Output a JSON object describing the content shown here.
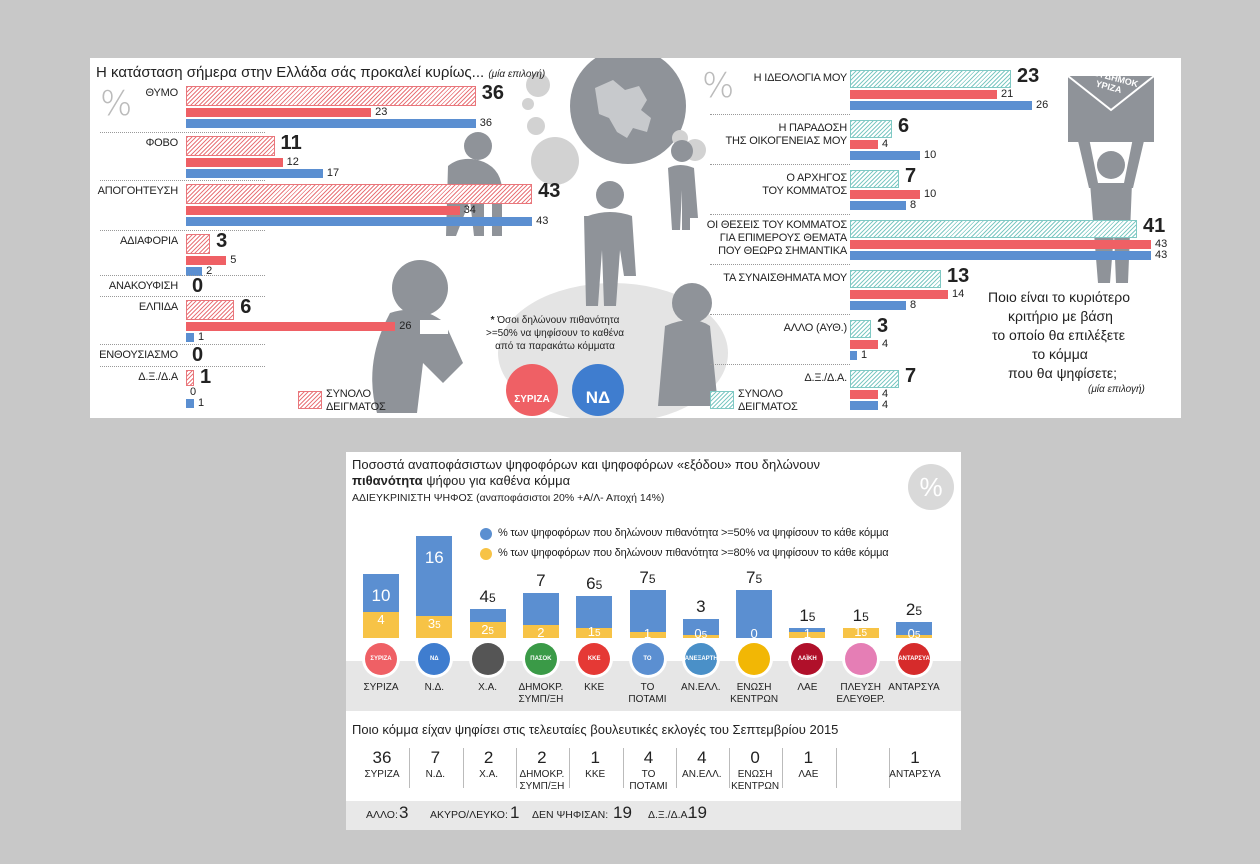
{
  "colors": {
    "red": "#ef6065",
    "blue": "#5b8fd1",
    "teal": "#7fc9c4",
    "yellow": "#f7c346",
    "gray": "#8f9399"
  },
  "left_chart": {
    "title": "Η κατάσταση σήμερα στην Ελλάδα σάς προκαλεί κυρίως...",
    "note": "(μία επιλογή)",
    "pct": "%",
    "legend": "ΣΥΝΟΛΟ ΔΕΙΓΜΑΤΟΣ",
    "legend_l1": "ΣΥΝΟΛΟ",
    "legend_l2": "ΔΕΙΓΜΑΤΟΣ"
  },
  "right_chart": {
    "pct": "%",
    "question_l1": "Ποιο είναι το κυριότερο",
    "question_l2": "κριτήριο με βάση",
    "question_l3": "το οποίο θα επιλέξετε",
    "question_l4": "το κόμμα",
    "question_l5": "που θα ψηφίσετε;",
    "note": "(μία επιλογή)",
    "legend_l1": "ΣΥΝΟΛΟ",
    "legend_l2": "ΔΕΙΓΜΑΤΟΣ",
    "envelope_l1": "ΝΕΑ ΔΗΜΟΚ",
    "envelope_l2": "ΥΡΙΖΑ"
  },
  "center_note": {
    "l1": "Όσοι δηλώνουν πιθανότητα",
    "l2": ">=50% να ψηφίσουν το καθένα",
    "l3": "από τα παρακάτω κόμματα",
    "star": "*"
  },
  "center_logos": {
    "syriza": "ΣΥΡΙΖΑ",
    "nd": "ΝΔ"
  },
  "bottom": {
    "title_l1": "Ποσοστά αναποφάσιστων ψηφοφόρων και ψηφοφόρων «εξόδου» που δηλώνουν",
    "title_l2_bold": "πιθανότητα",
    "title_l2_rest": " ψήφου για καθένα κόμμα",
    "subtitle": "ΑΔΙΕΥΚΡΙΝΙΣΤΗ ΨΗΦΟΣ (αναποφάσιστοι 20% +Α/Λ- Αποχή 14%)",
    "pct": "%",
    "legend_blue": "% των ψηφοφόρων που δηλώνουν πιθανότητα >=50% να ψηφίσουν το κάθε κόμμα",
    "legend_yellow": "% των ψηφοφόρων που δηλώνουν πιθανότητα >=80% να ψηφίσουν το κάθε κόμμα",
    "question": "Ποιο κόμμα είχαν ψηφίσει στις τελευταίες βουλευτικές εκλογές του Σεπτεμβρίου 2015",
    "footer": [
      {
        "label": "ΑΛΛΟ:",
        "value": "3"
      },
      {
        "label": "ΑΚΥΡΟ/ΛΕΥΚΟ:",
        "value": "1"
      },
      {
        "label": "ΔΕΝ ΨΗΦΙΣΑΝ:",
        "value": "19"
      },
      {
        "label": "Δ.Ξ./Δ.Α.:",
        "value": "19"
      }
    ]
  },
  "chart_data": [
    {
      "type": "bar",
      "title": "Η κατάσταση σήμερα στην Ελλάδα σάς προκαλεί κυρίως...",
      "categories": [
        "ΘΥΜΟ",
        "ΦΟΒΟ",
        "ΑΠΟΓΟΗΤΕΥΣΗ",
        "ΑΔΙΑΦΟΡΙΑ",
        "ΑΝΑΚΟΥΦΙΣΗ",
        "ΕΛΠΙΔΑ",
        "ΕΝΘΟΥΣΙΑΣΜΟ",
        "Δ.Ξ./Δ.Α"
      ],
      "series": [
        {
          "name": "ΣΥΝΟΛΟ ΔΕΙΓΜΑΤΟΣ",
          "values": [
            36,
            11,
            43,
            3,
            0,
            6,
            0,
            1
          ]
        },
        {
          "values": [
            23,
            12,
            34,
            5,
            null,
            26,
            null,
            0
          ]
        },
        {
          "values": [
            36,
            17,
            43,
            2,
            null,
            1,
            null,
            1
          ]
        }
      ],
      "value_labels": [
        [
          "36",
          "11",
          "43",
          "3",
          "0",
          "6",
          "0",
          "1"
        ],
        [
          "23",
          "12",
          "34",
          "5",
          "",
          "26",
          "",
          "0"
        ],
        [
          "36",
          "17",
          "43",
          "2",
          "",
          "1",
          "",
          "1"
        ]
      ]
    },
    {
      "type": "bar",
      "categories": [
        [
          "Η ΙΔΕΟΛΟΓΙΑ ΜΟΥ"
        ],
        [
          "Η ΠΑΡΑΔΟΣΗ",
          "ΤΗΣ ΟΙΚΟΓΕΝΕΙΑΣ ΜΟΥ"
        ],
        [
          "Ο ΑΡΧΗΓΟΣ",
          "ΤΟΥ ΚΟΜΜΑΤΟΣ"
        ],
        [
          "ΟΙ ΘΕΣΕΙΣ ΤΟΥ ΚΟΜΜΑΤΟΣ",
          "ΓΙΑ ΕΠΙΜΕΡΟΥΣ ΘΕΜΑΤΑ",
          "ΠΟΥ ΘΕΩΡΩ ΣΗΜΑΝΤΙΚΑ"
        ],
        [
          "ΤΑ ΣΥΝΑΙΣΘΗΜΑΤΑ ΜΟΥ"
        ],
        [
          "ΑΛΛΟ (ΑΥΘ.)"
        ],
        [
          "Δ.Ξ./Δ.Α."
        ]
      ],
      "series": [
        {
          "name": "ΣΥΝΟΛΟ ΔΕΙΓΜΑΤΟΣ",
          "values": [
            23,
            6,
            7,
            41,
            13,
            3,
            7
          ]
        },
        {
          "values": [
            21,
            4,
            10,
            43,
            14,
            4,
            4
          ]
        },
        {
          "values": [
            26,
            10,
            8,
            43,
            8,
            1,
            4
          ]
        }
      ]
    },
    {
      "type": "bar",
      "title": "Ποσοστά αναποφάσιστων ψηφοφόρων και ψηφοφόρων «εξόδου» που δηλώνουν πιθανότητα ψήφου για καθένα κόμμα",
      "categories": [
        [
          "ΣΥΡΙΖΑ"
        ],
        [
          "Ν.Δ."
        ],
        [
          "Χ.Α."
        ],
        [
          "ΔΗΜΟΚΡ.",
          "ΣΥΜΠ/ΞΗ"
        ],
        [
          "ΚΚΕ"
        ],
        [
          "ΤΟ ΠΟΤΑΜΙ"
        ],
        [
          "ΑΝ.ΕΛΛ."
        ],
        [
          "ΕΝΩΣΗ",
          "ΚΕΝΤΡΩΝ"
        ],
        [
          "ΛΑΕ"
        ],
        [
          "ΠΛΕΥΣΗ",
          "ΕΛΕΥΘΕΡ."
        ],
        [
          "ΑΝΤΑΡΣΥΑ"
        ]
      ],
      "logos": [
        "ΣΥΡΙΖΑ",
        "ΝΔ",
        "",
        "ΠΑΣΟΚ",
        "ΚΚΕ",
        "ΤΟ ΠΟΤΑΜΙ",
        "ΑΝΕΞΑΡΤΗΤΟΙ ΕΛΛΗΝΕΣ",
        "",
        "ΛΑΪΚΗ ΕΝΟΤΗΤΑ",
        "",
        "ΑΝΤΑΡΣΥΑ"
      ],
      "series": [
        {
          "name": "% των ψηφοφόρων που δηλώνουν πιθανότητα >=50% να ψηφίσουν το κάθε κόμμα",
          "values": [
            10,
            16,
            4.5,
            7,
            6.5,
            7.5,
            3,
            7.5,
            1.5,
            1.5,
            2.5
          ]
        },
        {
          "name": "% των ψηφοφόρων που δηλώνουν πιθανότητα >=80% να ψηφίσουν το κάθε κόμμα",
          "values": [
            4,
            3.5,
            2.5,
            2,
            1.5,
            1,
            0.5,
            0,
            1,
            1.5,
            0.5
          ]
        }
      ],
      "big_labels": [
        [
          "10"
        ],
        [
          "16"
        ],
        [
          "4",
          "5"
        ],
        [
          "7"
        ],
        [
          "6",
          "5"
        ],
        [
          "7",
          "5"
        ],
        [
          "3"
        ],
        [
          "7",
          "5"
        ],
        [
          "1",
          "5"
        ],
        [
          "1",
          "5"
        ],
        [
          "2",
          "5"
        ]
      ],
      "small_labels": [
        [
          "4"
        ],
        [
          "3",
          "5"
        ],
        [
          "2",
          "5"
        ],
        [
          "2"
        ],
        [
          "1",
          "5"
        ],
        [
          "1"
        ],
        [
          "0",
          "5"
        ],
        [
          "0"
        ],
        [
          "1"
        ],
        [
          "1",
          "5"
        ],
        [
          "0",
          "5"
        ]
      ]
    },
    {
      "type": "table",
      "title": "Ποιο κόμμα είχαν ψηφίσει στις τελευταίες βουλευτικές εκλογές του Σεπτεμβρίου 2015",
      "columns": [
        {
          "value": "36",
          "label": [
            "ΣΥΡΙΖΑ"
          ]
        },
        {
          "value": "7",
          "label": [
            "Ν.Δ."
          ]
        },
        {
          "value": "2",
          "label": [
            "Χ.Α."
          ]
        },
        {
          "value": "2",
          "label": [
            "ΔΗΜΟΚΡ.",
            "ΣΥΜΠ/ΞΗ"
          ]
        },
        {
          "value": "1",
          "label": [
            "ΚΚΕ"
          ]
        },
        {
          "value": "4",
          "label": [
            "ΤΟ",
            "ΠΟΤΑΜΙ"
          ]
        },
        {
          "value": "4",
          "label": [
            "ΑΝ.ΕΛΛ."
          ]
        },
        {
          "value": "0",
          "label": [
            "ΕΝΩΣΗ",
            "ΚΕΝΤΡΩΝ"
          ]
        },
        {
          "value": "1",
          "label": [
            "ΛΑΕ"
          ]
        },
        {
          "value": "",
          "label": []
        },
        {
          "value": "1",
          "label": [
            "ΑΝΤΑΡΣΥΑ"
          ]
        }
      ]
    }
  ]
}
